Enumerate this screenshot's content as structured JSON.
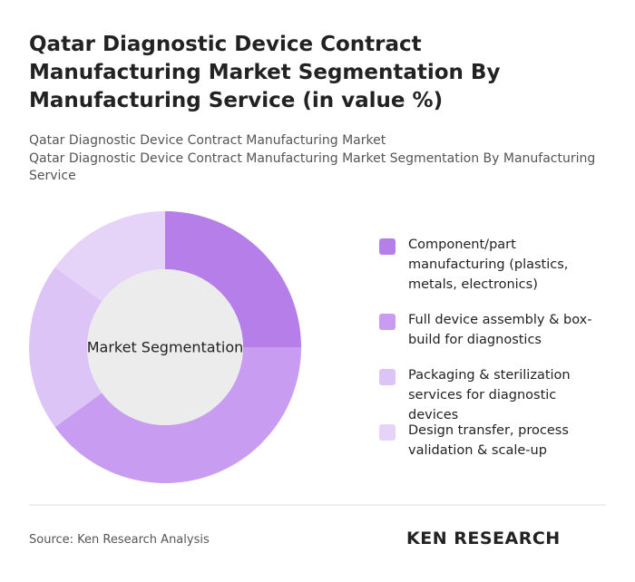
{
  "chart_data": {
    "type": "donut",
    "title": "Qatar Diagnostic Device Contract Manufacturing Market Segmentation By Manufacturing Service (in value %)",
    "subtitle": [
      "Qatar Diagnostic Device Contract Manufacturing Market",
      "Qatar Diagnostic Device Contract Manufacturing Market Segmentation By Manufacturing Service"
    ],
    "center_label": "Market Segmentation",
    "categories": [
      "Component/part manufacturing (plastics, metals, electronics)",
      "Full device assembly & box-build for diagnostics",
      "Packaging & sterilization services for diagnostic devices",
      "Design transfer, process validation & scale-up"
    ],
    "values": [
      25,
      40,
      20,
      15
    ],
    "colors": [
      "#b57ee9",
      "#c89cf0",
      "#dcc4f6",
      "#e6d4f8"
    ],
    "source": "Source: Ken Research Analysis",
    "brand": "KEN RESEARCH"
  }
}
